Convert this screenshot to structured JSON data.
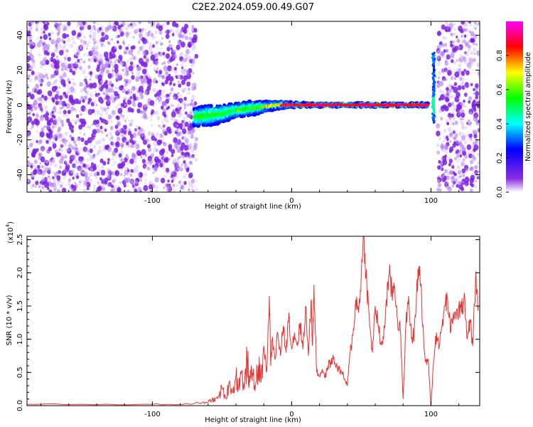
{
  "title": "C2E2.2024.059.00.49.G07",
  "chart_data": [
    {
      "type": "heatmap",
      "xlabel": "Height of straight line (km)",
      "ylabel": "Frequency (Hz)",
      "xlim": [
        -190,
        135
      ],
      "ylim": [
        -50,
        48
      ],
      "xticks": [
        -100,
        0,
        100
      ],
      "yticks": [
        -40,
        -20,
        0,
        20,
        40
      ],
      "colorbar": {
        "label": "Normalized spectral amplitude",
        "range": [
          0.0,
          1.0
        ],
        "ticks": [
          "0.0",
          "0.2",
          "0.4",
          "0.6",
          "0.8"
        ],
        "colormap": [
          "#ffffff",
          "#8a2be2",
          "#0000ff",
          "#00ffff",
          "#00ff00",
          "#ffff00",
          "#ff0000",
          "#ff00ff"
        ]
      },
      "noise_regions": [
        [
          -190,
          -68
        ],
        [
          105,
          135
        ]
      ],
      "signal_track": {
        "x": [
          -70,
          -60,
          -50,
          -40,
          -30,
          -20,
          -10,
          0,
          10,
          20,
          40,
          60,
          80,
          98
        ],
        "y": [
          -7,
          -6,
          -5,
          -3,
          -2,
          -1,
          0,
          0,
          0,
          0,
          0,
          0,
          0,
          0
        ],
        "spread": [
          5,
          6,
          5,
          4,
          4,
          3,
          2,
          1.5,
          1.2,
          1,
          1,
          1,
          1,
          1
        ]
      },
      "spike": {
        "x": 102,
        "y_range": [
          -10,
          30
        ]
      }
    },
    {
      "type": "line",
      "xlabel": "Height of straight line (km)",
      "ylabel": "SNR (10 * v/v)",
      "exponent_label": "(x10",
      "exponent_power": "4",
      "exponent_close": ")",
      "xlim": [
        -190,
        135
      ],
      "ylim": [
        0,
        2.55
      ],
      "xticks": [
        -100,
        0,
        100
      ],
      "yticks": [
        "0.0",
        "0.5",
        "1.0",
        "1.5",
        "2.0",
        "2.5"
      ],
      "line_color": "#e8312f",
      "x": [
        -190,
        -150,
        -100,
        -80,
        -70,
        -65,
        -60,
        -57,
        -55,
        -52,
        -50,
        -47,
        -45,
        -42,
        -40,
        -38,
        -36,
        -34,
        -32,
        -30,
        -28,
        -26,
        -24,
        -22,
        -20,
        -18,
        -16,
        -15,
        -14,
        -12,
        -10,
        -8,
        -6,
        -4,
        -2,
        0,
        2,
        4,
        6,
        8,
        10,
        12,
        14,
        15,
        16,
        18,
        20,
        22,
        24,
        26,
        28,
        30,
        32,
        34,
        36,
        38,
        40,
        42,
        44,
        46,
        48,
        50,
        52,
        54,
        56,
        58,
        60,
        62,
        64,
        66,
        68,
        70,
        72,
        74,
        76,
        78,
        80,
        82,
        84,
        86,
        88,
        90,
        92,
        94,
        96,
        98,
        100,
        102,
        104,
        106,
        108,
        110,
        112,
        114,
        116,
        118,
        120,
        122,
        124,
        126,
        128,
        130,
        132,
        134
      ],
      "y": [
        0.02,
        0.02,
        0.02,
        0.02,
        0.03,
        0.04,
        0.05,
        0.1,
        0.08,
        0.15,
        0.25,
        0.1,
        0.35,
        0.2,
        0.45,
        0.3,
        0.5,
        0.25,
        0.7,
        0.35,
        0.5,
        0.3,
        0.6,
        0.35,
        0.9,
        0.5,
        1.65,
        0.6,
        1.0,
        0.7,
        1.1,
        0.75,
        1.2,
        0.8,
        1.4,
        0.85,
        1.1,
        0.9,
        1.25,
        0.85,
        1.5,
        0.75,
        1.6,
        0.9,
        1.82,
        0.5,
        0.45,
        0.55,
        0.42,
        0.6,
        0.65,
        0.7,
        0.6,
        0.55,
        0.5,
        0.4,
        0.3,
        0.8,
        1.05,
        1.6,
        1.4,
        2.0,
        2.52,
        1.8,
        1.2,
        0.8,
        1.5,
        1.2,
        0.95,
        1.0,
        1.6,
        1.95,
        1.7,
        1.8,
        1.3,
        1.15,
        0.1,
        1.2,
        1.65,
        1.0,
        1.1,
        1.9,
        2.1,
        1.2,
        0.65,
        0.7,
        0.0,
        0.7,
        1.1,
        0.9,
        1.2,
        1.5,
        1.6,
        1.1,
        1.4,
        1.3,
        1.5,
        1.4,
        1.7,
        1.0,
        1.3,
        0.9,
        1.9,
        1.5
      ]
    }
  ]
}
